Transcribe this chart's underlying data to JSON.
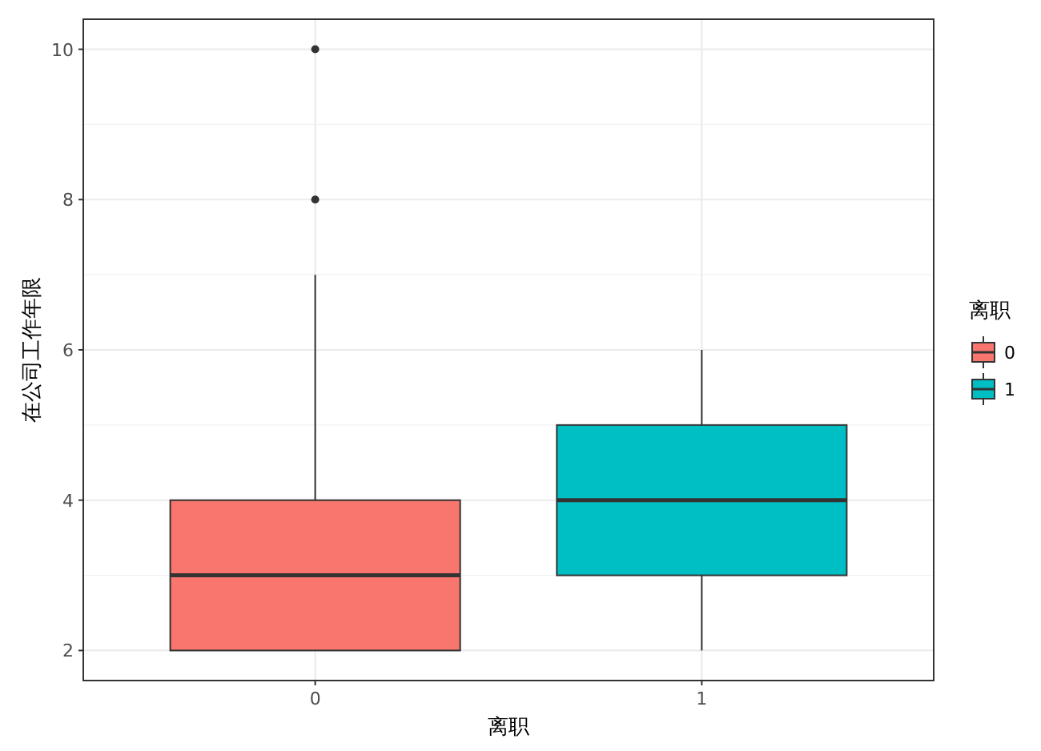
{
  "chart_data": {
    "type": "box",
    "xlabel": "离职",
    "ylabel": "在公司工作年限",
    "legend_title": "离职",
    "categories": [
      "0",
      "1"
    ],
    "series": [
      {
        "name": "0",
        "color": "#f8766d",
        "boxes": [
          {
            "low": 2,
            "q1": 2,
            "median": 3,
            "q3": 4,
            "high": 7,
            "outliers": [
              8,
              10
            ]
          },
          null
        ]
      },
      {
        "name": "1",
        "color": "#00bfc4",
        "boxes": [
          null,
          {
            "low": 2,
            "q1": 3,
            "median": 4,
            "q3": 5,
            "high": 6
          }
        ]
      }
    ],
    "ylim": [
      1.6,
      10.4
    ],
    "yticks": [
      2,
      4,
      6,
      8,
      10
    ],
    "grid": true,
    "legend": "right"
  }
}
